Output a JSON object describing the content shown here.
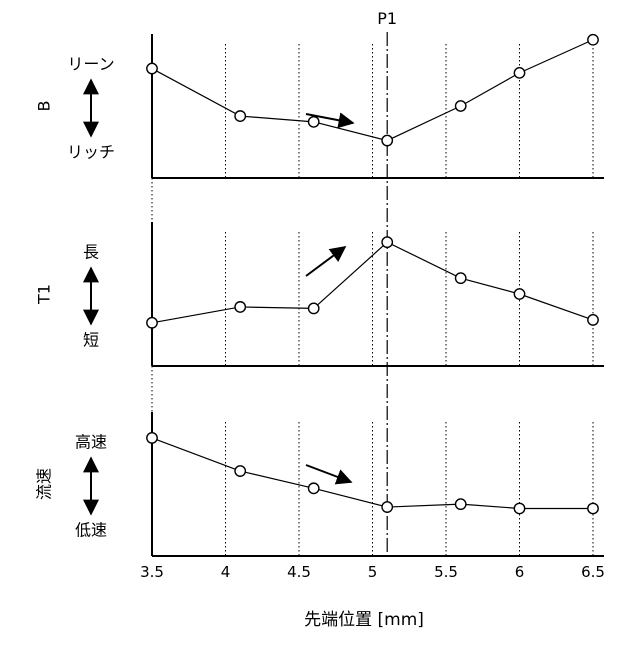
{
  "marker_label": "P1",
  "xlabel": "先端位置 [mm]",
  "x_ticks": [
    "3.5",
    "4",
    "4.5",
    "5",
    "5.5",
    "6",
    "6.5"
  ],
  "colors": {
    "ink": "#000000",
    "background": "#ffffff"
  },
  "chart_data": {
    "type": "line",
    "x_range": [
      3.5,
      6.5
    ],
    "vertical_marker": {
      "label": "P1",
      "x": 5.1
    },
    "gridlines": "vertical dotted",
    "xlabel": "先端位置 [mm]",
    "panels": [
      {
        "ylabel": "B",
        "y_top_label": "リーン",
        "y_bottom_label": "リッチ",
        "trend_arrow": "right-down",
        "x": [
          3.5,
          4.1,
          4.6,
          5.1,
          5.6,
          6.0,
          6.5
        ],
        "y": [
          0.76,
          0.43,
          0.39,
          0.26,
          0.5,
          0.73,
          0.96
        ]
      },
      {
        "ylabel": "T1",
        "y_top_label": "長",
        "y_bottom_label": "短",
        "trend_arrow": "up-right",
        "x": [
          3.5,
          4.1,
          4.6,
          5.1,
          5.6,
          6.0,
          6.5
        ],
        "y": [
          0.3,
          0.41,
          0.4,
          0.86,
          0.61,
          0.5,
          0.32
        ]
      },
      {
        "ylabel": "流速",
        "y_top_label": "高速",
        "y_bottom_label": "低速",
        "trend_arrow": "right-down",
        "x": [
          3.5,
          4.1,
          4.6,
          5.1,
          5.6,
          6.0,
          6.5
        ],
        "y": [
          0.82,
          0.59,
          0.47,
          0.34,
          0.36,
          0.33,
          0.33
        ]
      }
    ]
  }
}
